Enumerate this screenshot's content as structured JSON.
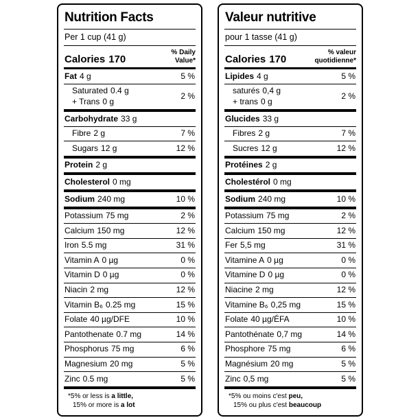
{
  "canvas": {
    "background": "#ffffff",
    "border_color": "#000000",
    "text_color": "#000000"
  },
  "panels": [
    {
      "id": "en",
      "title": "Nutrition Facts",
      "serving": "Per 1 cup (41 g)",
      "calories_label": "Calories",
      "calories_value": "170",
      "dv_header": [
        "% Daily",
        "Value*"
      ],
      "rows": [
        {
          "rule": "none",
          "indent": false,
          "bold": true,
          "lines": [
            {
              "name": "Fat",
              "amount": "4 g"
            }
          ],
          "dv": "5 %"
        },
        {
          "rule": "thin",
          "indent": true,
          "bold": false,
          "lines": [
            {
              "name": "Saturated",
              "amount": "0.4 g"
            },
            {
              "name": "+ Trans",
              "amount": "0 g"
            }
          ],
          "dv": "2 %"
        },
        {
          "rule": "thick",
          "indent": false,
          "bold": true,
          "lines": [
            {
              "name": "Carbohydrate",
              "amount": "33 g"
            }
          ],
          "dv": ""
        },
        {
          "rule": "thin",
          "indent": true,
          "bold": false,
          "lines": [
            {
              "name": "Fibre",
              "amount": "2 g"
            }
          ],
          "dv": "7 %"
        },
        {
          "rule": "thin",
          "indent": true,
          "bold": false,
          "lines": [
            {
              "name": "Sugars",
              "amount": "12 g"
            }
          ],
          "dv": "12 %"
        },
        {
          "rule": "thick",
          "indent": false,
          "bold": true,
          "lines": [
            {
              "name": "Protein",
              "amount": "2 g"
            }
          ],
          "dv": ""
        },
        {
          "rule": "thick",
          "indent": false,
          "bold": true,
          "lines": [
            {
              "name": "Cholesterol",
              "amount": "0 mg"
            }
          ],
          "dv": ""
        },
        {
          "rule": "thick",
          "indent": false,
          "bold": true,
          "lines": [
            {
              "name": "Sodium",
              "amount": "240 mg"
            }
          ],
          "dv": "10 %"
        },
        {
          "rule": "thick",
          "indent": false,
          "bold": false,
          "lines": [
            {
              "name": "Potassium",
              "amount": "75 mg"
            }
          ],
          "dv": "2 %"
        },
        {
          "rule": "thin",
          "indent": false,
          "bold": false,
          "lines": [
            {
              "name": "Calcium",
              "amount": "150 mg"
            }
          ],
          "dv": "12 %"
        },
        {
          "rule": "thin",
          "indent": false,
          "bold": false,
          "lines": [
            {
              "name": "Iron",
              "amount": "5.5 mg"
            }
          ],
          "dv": "31 %"
        },
        {
          "rule": "thin",
          "indent": false,
          "bold": false,
          "lines": [
            {
              "name": "Vitamin A",
              "amount": "0 µg"
            }
          ],
          "dv": "0 %"
        },
        {
          "rule": "thin",
          "indent": false,
          "bold": false,
          "lines": [
            {
              "name": "Vitamin D",
              "amount": "0 µg"
            }
          ],
          "dv": "0 %"
        },
        {
          "rule": "thin",
          "indent": false,
          "bold": false,
          "lines": [
            {
              "name": "Niacin",
              "amount": "2 mg"
            }
          ],
          "dv": "12 %"
        },
        {
          "rule": "thin",
          "indent": false,
          "bold": false,
          "lines": [
            {
              "name": "Vitamin B₆",
              "amount": "0.25 mg"
            }
          ],
          "dv": "15 %"
        },
        {
          "rule": "thin",
          "indent": false,
          "bold": false,
          "lines": [
            {
              "name": "Folate",
              "amount": "40 µg/DFE"
            }
          ],
          "dv": "10 %"
        },
        {
          "rule": "thin",
          "indent": false,
          "bold": false,
          "lines": [
            {
              "name": "Pantothenate",
              "amount": "0.7 mg"
            }
          ],
          "dv": "14 %"
        },
        {
          "rule": "thin",
          "indent": false,
          "bold": false,
          "lines": [
            {
              "name": "Phosphorus",
              "amount": "75 mg"
            }
          ],
          "dv": "6 %"
        },
        {
          "rule": "thin",
          "indent": false,
          "bold": false,
          "lines": [
            {
              "name": "Magnesium",
              "amount": "20 mg"
            }
          ],
          "dv": "5 %"
        },
        {
          "rule": "thin",
          "indent": false,
          "bold": false,
          "lines": [
            {
              "name": "Zinc",
              "amount": "0.5 mg"
            }
          ],
          "dv": "5 %"
        }
      ],
      "footnote": [
        {
          "pre": "*5% or less is ",
          "bold": "a little,"
        },
        {
          "pre": "15% or more is ",
          "bold": "a lot"
        }
      ]
    },
    {
      "id": "fr",
      "title": "Valeur nutritive",
      "serving": "pour 1 tasse (41 g)",
      "calories_label": "Calories",
      "calories_value": "170",
      "dv_header": [
        "% valeur",
        "quotidienne*"
      ],
      "rows": [
        {
          "rule": "none",
          "indent": false,
          "bold": true,
          "lines": [
            {
              "name": "Lipides",
              "amount": "4 g"
            }
          ],
          "dv": "5 %"
        },
        {
          "rule": "thin",
          "indent": true,
          "bold": false,
          "lines": [
            {
              "name": "saturés",
              "amount": "0,4 g"
            },
            {
              "name": "+ trans",
              "amount": "0 g"
            }
          ],
          "dv": "2 %"
        },
        {
          "rule": "thick",
          "indent": false,
          "bold": true,
          "lines": [
            {
              "name": "Glucides",
              "amount": "33 g"
            }
          ],
          "dv": ""
        },
        {
          "rule": "thin",
          "indent": true,
          "bold": false,
          "lines": [
            {
              "name": "Fibres",
              "amount": "2 g"
            }
          ],
          "dv": "7 %"
        },
        {
          "rule": "thin",
          "indent": true,
          "bold": false,
          "lines": [
            {
              "name": "Sucres",
              "amount": "12 g"
            }
          ],
          "dv": "12 %"
        },
        {
          "rule": "thick",
          "indent": false,
          "bold": true,
          "lines": [
            {
              "name": "Protéines",
              "amount": "2 g"
            }
          ],
          "dv": ""
        },
        {
          "rule": "thick",
          "indent": false,
          "bold": true,
          "lines": [
            {
              "name": "Cholestérol",
              "amount": "0 mg"
            }
          ],
          "dv": ""
        },
        {
          "rule": "thick",
          "indent": false,
          "bold": true,
          "lines": [
            {
              "name": "Sodium",
              "amount": "240 mg"
            }
          ],
          "dv": "10 %"
        },
        {
          "rule": "thick",
          "indent": false,
          "bold": false,
          "lines": [
            {
              "name": "Potassium",
              "amount": "75 mg"
            }
          ],
          "dv": "2 %"
        },
        {
          "rule": "thin",
          "indent": false,
          "bold": false,
          "lines": [
            {
              "name": "Calcium",
              "amount": "150 mg"
            }
          ],
          "dv": "12 %"
        },
        {
          "rule": "thin",
          "indent": false,
          "bold": false,
          "lines": [
            {
              "name": "Fer",
              "amount": "5,5 mg"
            }
          ],
          "dv": "31 %"
        },
        {
          "rule": "thin",
          "indent": false,
          "bold": false,
          "lines": [
            {
              "name": "Vitamine A",
              "amount": "0 µg"
            }
          ],
          "dv": "0 %"
        },
        {
          "rule": "thin",
          "indent": false,
          "bold": false,
          "lines": [
            {
              "name": "Vitamine D",
              "amount": "0 µg"
            }
          ],
          "dv": "0 %"
        },
        {
          "rule": "thin",
          "indent": false,
          "bold": false,
          "lines": [
            {
              "name": "Niacine",
              "amount": "2 mg"
            }
          ],
          "dv": "12 %"
        },
        {
          "rule": "thin",
          "indent": false,
          "bold": false,
          "lines": [
            {
              "name": "Vitamine B₆",
              "amount": "0,25 mg"
            }
          ],
          "dv": "15 %"
        },
        {
          "rule": "thin",
          "indent": false,
          "bold": false,
          "lines": [
            {
              "name": "Folate",
              "amount": "40 µg/ÉFA"
            }
          ],
          "dv": "10 %"
        },
        {
          "rule": "thin",
          "indent": false,
          "bold": false,
          "lines": [
            {
              "name": "Pantothénate",
              "amount": "0,7 mg"
            }
          ],
          "dv": "14 %"
        },
        {
          "rule": "thin",
          "indent": false,
          "bold": false,
          "lines": [
            {
              "name": "Phosphore",
              "amount": "75 mg"
            }
          ],
          "dv": "6 %"
        },
        {
          "rule": "thin",
          "indent": false,
          "bold": false,
          "lines": [
            {
              "name": "Magnésium",
              "amount": "20 mg"
            }
          ],
          "dv": "5 %"
        },
        {
          "rule": "thin",
          "indent": false,
          "bold": false,
          "lines": [
            {
              "name": "Zinc",
              "amount": "0,5 mg"
            }
          ],
          "dv": "5 %"
        }
      ],
      "footnote": [
        {
          "pre": "*5% ou moins c'est ",
          "bold": "peu,"
        },
        {
          "pre": "15% ou plus c'est ",
          "bold": "beaucoup"
        }
      ]
    }
  ]
}
